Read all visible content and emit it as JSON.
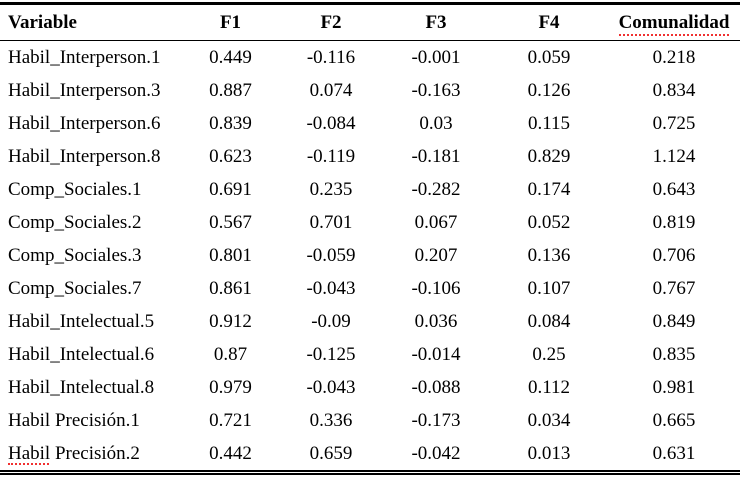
{
  "colors": {
    "text": "#000000",
    "background": "#ffffff",
    "rule": "#000000",
    "spellcheck_underline": "#f03030"
  },
  "chart_data": {
    "type": "table",
    "title": "",
    "columns": [
      "Variable",
      "F1",
      "F2",
      "F3",
      "F4",
      "Comunalidad"
    ]
  },
  "table": {
    "columns": [
      "Variable",
      "F1",
      "F2",
      "F3",
      "F4",
      "Comunalidad"
    ],
    "rows": [
      {
        "variable": "Habil_Interperson.1",
        "values": [
          "0.449",
          "-0.116",
          "-0.001",
          "0.059",
          "0.218"
        ]
      },
      {
        "variable": "Habil_Interperson.3",
        "values": [
          "0.887",
          "0.074",
          "-0.163",
          "0.126",
          "0.834"
        ]
      },
      {
        "variable": "Habil_Interperson.6",
        "values": [
          "0.839",
          "-0.084",
          "0.03",
          "0.115",
          "0.725"
        ]
      },
      {
        "variable": "Habil_Interperson.8",
        "values": [
          "0.623",
          "-0.119",
          "-0.181",
          "0.829",
          "1.124"
        ]
      },
      {
        "variable": "Comp_Sociales.1",
        "values": [
          "0.691",
          "0.235",
          "-0.282",
          "0.174",
          "0.643"
        ]
      },
      {
        "variable": "Comp_Sociales.2",
        "values": [
          "0.567",
          "0.701",
          "0.067",
          "0.052",
          "0.819"
        ]
      },
      {
        "variable": "Comp_Sociales.3",
        "values": [
          "0.801",
          "-0.059",
          "0.207",
          "0.136",
          "0.706"
        ]
      },
      {
        "variable": "Comp_Sociales.7",
        "values": [
          "0.861",
          "-0.043",
          "-0.106",
          "0.107",
          "0.767"
        ]
      },
      {
        "variable": "Habil_Intelectual.5",
        "values": [
          "0.912",
          "-0.09",
          "0.036",
          "0.084",
          "0.849"
        ]
      },
      {
        "variable": "Habil_Intelectual.6",
        "values": [
          "0.87",
          "-0.125",
          "-0.014",
          "0.25",
          "0.835"
        ]
      },
      {
        "variable": "Habil_Intelectual.8",
        "values": [
          "0.979",
          "-0.043",
          "-0.088",
          "0.112",
          "0.981"
        ]
      },
      {
        "variable": "Habil Precisión.1",
        "values": [
          "0.721",
          "0.336",
          "-0.173",
          "0.034",
          "0.665"
        ]
      },
      {
        "variable": "Habil Precisión.2",
        "values": [
          "0.442",
          "0.659",
          "-0.042",
          "0.013",
          "0.631"
        ]
      }
    ]
  }
}
